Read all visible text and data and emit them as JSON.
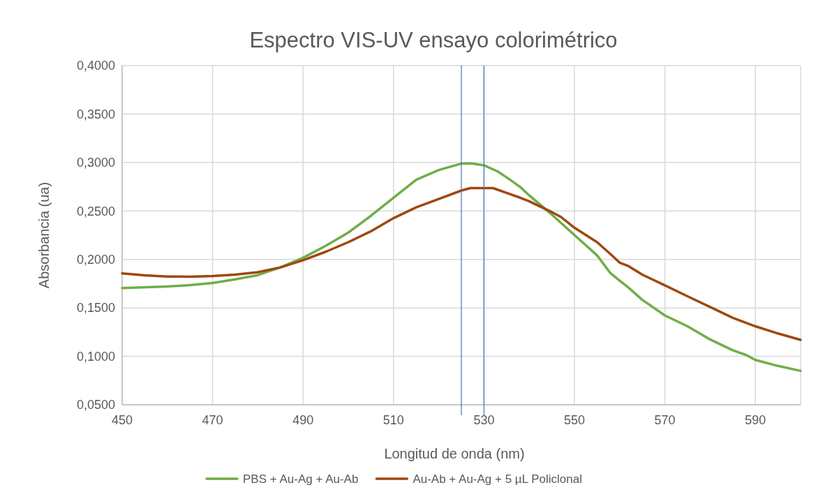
{
  "chart_data": {
    "type": "line",
    "title": "Espectro VIS-UV ensayo colorimétrico",
    "xlabel": "Longitud de onda (nm)",
    "ylabel": "Absorbancia (ua)",
    "xlim": [
      450,
      600
    ],
    "xticks": [
      450,
      470,
      490,
      510,
      530,
      550,
      570,
      590
    ],
    "ylim": [
      0.05,
      0.4
    ],
    "yticks": [
      {
        "value": 0.05,
        "label": "0,0500"
      },
      {
        "value": 0.1,
        "label": "0,1000"
      },
      {
        "value": 0.15,
        "label": "0,1500"
      },
      {
        "value": 0.2,
        "label": "0,2000"
      },
      {
        "value": 0.25,
        "label": "0,2500"
      },
      {
        "value": 0.3,
        "label": "0,3000"
      },
      {
        "value": 0.35,
        "label": "0,3500"
      },
      {
        "value": 0.4,
        "label": "0,4000"
      }
    ],
    "grid": true,
    "legend": "bottom",
    "marker": "none",
    "line_style": "solid",
    "ref_lines": [
      {
        "axis": "x",
        "value": 525,
        "color": "#4472c4"
      },
      {
        "axis": "x",
        "value": 530,
        "color": "#4472c4"
      }
    ],
    "series": [
      {
        "name": "PBS + Au-Ag + Au-Ab",
        "color": "#70ad47",
        "x": [
          450,
          460,
          465,
          470,
          475,
          480,
          485,
          490,
          495,
          500,
          505,
          510,
          515,
          520,
          525,
          527,
          530,
          533,
          535,
          538,
          540,
          545,
          550,
          555,
          558,
          560,
          562,
          565,
          570,
          575,
          580,
          585,
          588,
          590,
          595,
          600
        ],
        "values": [
          0.1705,
          0.172,
          0.1735,
          0.1757,
          0.1794,
          0.1838,
          0.1918,
          0.2017,
          0.214,
          0.2277,
          0.245,
          0.2637,
          0.2822,
          0.2922,
          0.2989,
          0.2991,
          0.2971,
          0.2909,
          0.2847,
          0.2748,
          0.2661,
          0.2463,
          0.2252,
          0.2042,
          0.1856,
          0.1781,
          0.1707,
          0.1583,
          0.1422,
          0.131,
          0.1174,
          0.1063,
          0.1013,
          0.0963,
          0.0901,
          0.085
        ]
      },
      {
        "name": "Au-Ab + Au-Ag + 5 µL Policlonal",
        "color": "#9e480e",
        "x": [
          450,
          455,
          460,
          465,
          470,
          475,
          480,
          485,
          490,
          495,
          500,
          505,
          510,
          515,
          520,
          525,
          527,
          530,
          532,
          535,
          538,
          540,
          545,
          547,
          550,
          555,
          558,
          560,
          562,
          565,
          570,
          575,
          580,
          585,
          590,
          595,
          600
        ],
        "values": [
          0.1856,
          0.1836,
          0.1824,
          0.1821,
          0.1828,
          0.1843,
          0.1868,
          0.1918,
          0.1992,
          0.2079,
          0.2178,
          0.229,
          0.2426,
          0.2537,
          0.2624,
          0.2711,
          0.2736,
          0.2736,
          0.2736,
          0.2686,
          0.2637,
          0.26,
          0.2488,
          0.2439,
          0.2327,
          0.2178,
          0.2054,
          0.1967,
          0.193,
          0.1843,
          0.1732,
          0.162,
          0.1509,
          0.1397,
          0.131,
          0.1236,
          0.117
        ]
      }
    ]
  }
}
